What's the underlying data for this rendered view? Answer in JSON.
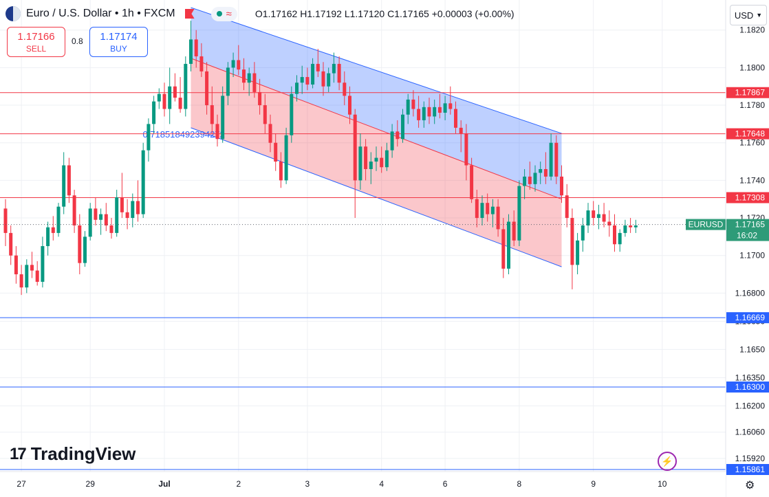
{
  "header": {
    "symbol_title": "Euro / U.S. Dollar • 1h • FXCM",
    "ohlc": "O1.17162  H1.17192  L1.17120  C1.17165  +0.00003 (+0.00%)",
    "flag_icon": "eu-us-flag-icon",
    "alert_icon": "flag-icon",
    "wave_icon": "wave-icon"
  },
  "trade": {
    "sell_price": "1.17166",
    "sell_label": "SELL",
    "spread": "0.8",
    "buy_price": "1.17174",
    "buy_label": "BUY"
  },
  "currency_selector": "USD",
  "brand": "TradingView",
  "brand_mark": "17",
  "chart_data": {
    "type": "candlestick",
    "symbol": "EURUSD",
    "timeframe": "1h",
    "ylim": [
      1.1585,
      1.1836
    ],
    "price_axis_labels": [
      1.182,
      1.18,
      1.178,
      1.176,
      1.174,
      1.172,
      1.17,
      1.168,
      1.1665,
      1.165,
      1.1635,
      1.162,
      1.1606,
      1.1592
    ],
    "x_tick_labels": [
      {
        "label": "27",
        "bar": 3
      },
      {
        "label": "29",
        "bar": 16
      },
      {
        "label": "Jul",
        "bar": 30
      },
      {
        "label": "2",
        "bar": 44
      },
      {
        "label": "3",
        "bar": 57
      },
      {
        "label": "4",
        "bar": 71
      },
      {
        "label": "6",
        "bar": 83
      },
      {
        "label": "8",
        "bar": 97
      },
      {
        "label": "9",
        "bar": 111
      },
      {
        "label": "10",
        "bar": 124
      }
    ],
    "bar_count": 125,
    "horizontal_levels": [
      {
        "price": 1.17867,
        "label": "1.17867",
        "color": "#f23645"
      },
      {
        "price": 1.17648,
        "label": "1.17648",
        "color": "#f23645"
      },
      {
        "price": 1.17308,
        "label": "1.17308",
        "color": "#f23645"
      },
      {
        "price": 1.16669,
        "label": "1.16669",
        "color": "#2962ff"
      },
      {
        "price": 1.163,
        "label": "1.16300",
        "color": "#2962ff"
      },
      {
        "price": 1.15861,
        "label": "1.15861",
        "color": "#2962ff"
      }
    ],
    "channel": {
      "start_bar": 35,
      "end_bar": 105,
      "top": [
        1.1832,
        1.1765
      ],
      "mid": [
        1.1805,
        1.173
      ],
      "bottom": [
        1.1768,
        1.1694
      ],
      "upper_color": "#2962ff",
      "lower_color": "#f23645",
      "annotation": "0.7185184923942​72"
    },
    "current": {
      "symbol_label": "EURUSD",
      "price": "1.17165",
      "countdown": "16:02",
      "value": 1.17165
    },
    "candles": [
      [
        1.1725,
        1.173,
        1.1705,
        1.1712
      ],
      [
        1.1712,
        1.1716,
        1.1695,
        1.17
      ],
      [
        1.17,
        1.1705,
        1.1685,
        1.169
      ],
      [
        1.169,
        1.1695,
        1.1679,
        1.1683
      ],
      [
        1.1683,
        1.1698,
        1.168,
        1.1695
      ],
      [
        1.1695,
        1.1702,
        1.1688,
        1.1692
      ],
      [
        1.1692,
        1.1697,
        1.1684,
        1.1686
      ],
      [
        1.1686,
        1.171,
        1.1683,
        1.1705
      ],
      [
        1.1705,
        1.1718,
        1.17,
        1.1715
      ],
      [
        1.1715,
        1.1721,
        1.1708,
        1.1712
      ],
      [
        1.1712,
        1.1728,
        1.171,
        1.1726
      ],
      [
        1.1726,
        1.1755,
        1.1722,
        1.1748
      ],
      [
        1.1748,
        1.1752,
        1.1728,
        1.1732
      ],
      [
        1.1732,
        1.1735,
        1.1712,
        1.1716
      ],
      [
        1.1716,
        1.1722,
        1.169,
        1.1696
      ],
      [
        1.1696,
        1.1713,
        1.1694,
        1.171
      ],
      [
        1.171,
        1.1728,
        1.1708,
        1.1725
      ],
      [
        1.1725,
        1.1731,
        1.1716,
        1.1719
      ],
      [
        1.1719,
        1.1725,
        1.1711,
        1.1722
      ],
      [
        1.1722,
        1.1728,
        1.1713,
        1.1716
      ],
      [
        1.1716,
        1.172,
        1.1709,
        1.1712
      ],
      [
        1.1712,
        1.1735,
        1.171,
        1.1731
      ],
      [
        1.1731,
        1.1744,
        1.172,
        1.1723
      ],
      [
        1.1723,
        1.173,
        1.1714,
        1.172
      ],
      [
        1.172,
        1.1733,
        1.1715,
        1.1729
      ],
      [
        1.1729,
        1.174,
        1.1718,
        1.1722
      ],
      [
        1.1722,
        1.176,
        1.172,
        1.1756
      ],
      [
        1.1756,
        1.1773,
        1.175,
        1.177
      ],
      [
        1.177,
        1.1785,
        1.1765,
        1.1782
      ],
      [
        1.1782,
        1.1789,
        1.1778,
        1.1786
      ],
      [
        1.1786,
        1.1792,
        1.1774,
        1.1778
      ],
      [
        1.1778,
        1.18,
        1.177,
        1.179
      ],
      [
        1.179,
        1.1797,
        1.1782,
        1.1784
      ],
      [
        1.1784,
        1.1795,
        1.1776,
        1.1778
      ],
      [
        1.1778,
        1.1806,
        1.1774,
        1.1802
      ],
      [
        1.1802,
        1.1825,
        1.1798,
        1.1815
      ],
      [
        1.1815,
        1.182,
        1.18,
        1.1806
      ],
      [
        1.1806,
        1.1813,
        1.1795,
        1.1798
      ],
      [
        1.1798,
        1.1803,
        1.1775,
        1.178
      ],
      [
        1.178,
        1.179,
        1.1765,
        1.177
      ],
      [
        1.177,
        1.1775,
        1.1758,
        1.1762
      ],
      [
        1.1762,
        1.179,
        1.176,
        1.1785
      ],
      [
        1.1785,
        1.1803,
        1.178,
        1.18
      ],
      [
        1.18,
        1.1808,
        1.1795,
        1.1804
      ],
      [
        1.1804,
        1.1812,
        1.1796,
        1.1799
      ],
      [
        1.1799,
        1.1805,
        1.1788,
        1.1792
      ],
      [
        1.1792,
        1.18,
        1.1785,
        1.1797
      ],
      [
        1.1797,
        1.1803,
        1.1784,
        1.1787
      ],
      [
        1.1787,
        1.1794,
        1.1775,
        1.178
      ],
      [
        1.178,
        1.1786,
        1.1765,
        1.177
      ],
      [
        1.177,
        1.1775,
        1.1755,
        1.176
      ],
      [
        1.176,
        1.1765,
        1.1745,
        1.175
      ],
      [
        1.175,
        1.1755,
        1.1736,
        1.174
      ],
      [
        1.174,
        1.1768,
        1.1738,
        1.1764
      ],
      [
        1.1764,
        1.179,
        1.176,
        1.1786
      ],
      [
        1.1786,
        1.1796,
        1.1782,
        1.1792
      ],
      [
        1.1792,
        1.1801,
        1.1786,
        1.1795
      ],
      [
        1.1795,
        1.18,
        1.1788,
        1.1791
      ],
      [
        1.1791,
        1.1805,
        1.1789,
        1.1802
      ],
      [
        1.1802,
        1.181,
        1.1795,
        1.1798
      ],
      [
        1.1798,
        1.1803,
        1.1785,
        1.179
      ],
      [
        1.179,
        1.18,
        1.1787,
        1.1797
      ],
      [
        1.1797,
        1.1808,
        1.1792,
        1.1802
      ],
      [
        1.1802,
        1.1806,
        1.1788,
        1.1792
      ],
      [
        1.1792,
        1.1798,
        1.178,
        1.1785
      ],
      [
        1.1785,
        1.179,
        1.177,
        1.1775
      ],
      [
        1.1775,
        1.1778,
        1.172,
        1.174
      ],
      [
        1.174,
        1.1765,
        1.1735,
        1.1758
      ],
      [
        1.1758,
        1.1762,
        1.174,
        1.1746
      ],
      [
        1.1746,
        1.1755,
        1.1738,
        1.175
      ],
      [
        1.175,
        1.1758,
        1.1745,
        1.1752
      ],
      [
        1.1752,
        1.1758,
        1.1744,
        1.1747
      ],
      [
        1.1747,
        1.176,
        1.1745,
        1.1756
      ],
      [
        1.1756,
        1.177,
        1.1752,
        1.1766
      ],
      [
        1.1766,
        1.1772,
        1.1758,
        1.1762
      ],
      [
        1.1762,
        1.1778,
        1.176,
        1.1775
      ],
      [
        1.1775,
        1.1786,
        1.177,
        1.1783
      ],
      [
        1.1783,
        1.1788,
        1.1774,
        1.1778
      ],
      [
        1.1778,
        1.1785,
        1.1768,
        1.1772
      ],
      [
        1.1772,
        1.1782,
        1.1768,
        1.1779
      ],
      [
        1.1779,
        1.1784,
        1.177,
        1.1774
      ],
      [
        1.1774,
        1.1783,
        1.177,
        1.1779
      ],
      [
        1.1779,
        1.1786,
        1.1773,
        1.1776
      ],
      [
        1.1776,
        1.1785,
        1.1772,
        1.1781
      ],
      [
        1.1781,
        1.179,
        1.1775,
        1.1778
      ],
      [
        1.1778,
        1.1782,
        1.1765,
        1.1768
      ],
      [
        1.1768,
        1.1772,
        1.1755,
        1.1765
      ],
      [
        1.1765,
        1.177,
        1.174,
        1.1748
      ],
      [
        1.1748,
        1.1752,
        1.1728,
        1.173
      ],
      [
        1.173,
        1.1735,
        1.1715,
        1.172
      ],
      [
        1.172,
        1.1732,
        1.1716,
        1.1728
      ],
      [
        1.1728,
        1.1733,
        1.1718,
        1.1722
      ],
      [
        1.1722,
        1.173,
        1.1715,
        1.1726
      ],
      [
        1.1726,
        1.173,
        1.171,
        1.1714
      ],
      [
        1.1714,
        1.172,
        1.1688,
        1.1693
      ],
      [
        1.1693,
        1.1722,
        1.169,
        1.1718
      ],
      [
        1.1718,
        1.1724,
        1.1705,
        1.1708
      ],
      [
        1.1708,
        1.174,
        1.1705,
        1.1737
      ],
      [
        1.1737,
        1.1746,
        1.173,
        1.1742
      ],
      [
        1.1742,
        1.175,
        1.1735,
        1.1738
      ],
      [
        1.1738,
        1.1748,
        1.1734,
        1.1744
      ],
      [
        1.1744,
        1.175,
        1.1738,
        1.1746
      ],
      [
        1.1746,
        1.1755,
        1.1738,
        1.1742
      ],
      [
        1.1742,
        1.1765,
        1.174,
        1.176
      ],
      [
        1.176,
        1.1764,
        1.1738,
        1.1742
      ],
      [
        1.1742,
        1.1748,
        1.1728,
        1.1732
      ],
      [
        1.1732,
        1.1738,
        1.1715,
        1.172
      ],
      [
        1.172,
        1.1725,
        1.1682,
        1.1695
      ],
      [
        1.1695,
        1.1712,
        1.169,
        1.1708
      ],
      [
        1.1708,
        1.172,
        1.1702,
        1.1716
      ],
      [
        1.1716,
        1.1728,
        1.1712,
        1.1724
      ],
      [
        1.1724,
        1.1729,
        1.1716,
        1.172
      ],
      [
        1.172,
        1.1727,
        1.1714,
        1.1722
      ],
      [
        1.1722,
        1.1728,
        1.1715,
        1.1718
      ],
      [
        1.1718,
        1.1724,
        1.171,
        1.1716
      ],
      [
        1.1716,
        1.1722,
        1.1702,
        1.1706
      ],
      [
        1.1706,
        1.1714,
        1.1702,
        1.1712
      ],
      [
        1.1712,
        1.1719,
        1.171,
        1.1716
      ],
      [
        1.1716,
        1.172,
        1.1712,
        1.1715
      ],
      [
        1.1715,
        1.1719,
        1.1712,
        1.1716
      ]
    ]
  }
}
